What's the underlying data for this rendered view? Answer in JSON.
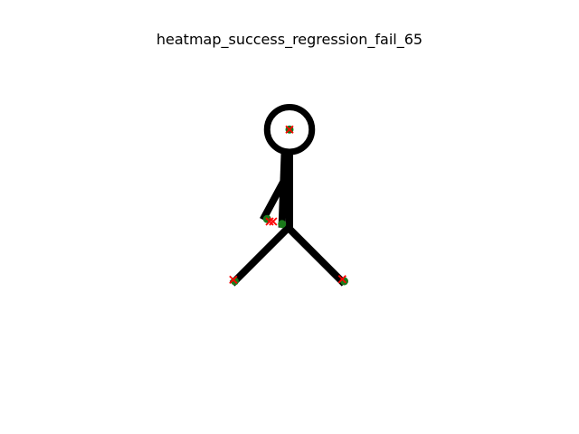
{
  "chart_data": {
    "type": "scatter",
    "title": "heatmap_success_regression_fail_65",
    "xlabel": "",
    "ylabel": "",
    "grid": false,
    "axes_visible": false,
    "image": {
      "type": "stick-figure",
      "color": "#000000",
      "size": [
        64,
        64
      ],
      "head": {
        "x": 32,
        "y": 15.5,
        "r": 4.5
      },
      "segments": [
        {
          "name": "neck-spine",
          "from": [
            32,
            20.5
          ],
          "to": [
            32,
            35
          ]
        },
        {
          "name": "torso-back",
          "from": [
            31,
            20.5
          ],
          "to": [
            30.5,
            34.5
          ]
        },
        {
          "name": "upper-arm",
          "from": [
            30.5,
            26.5
          ],
          "to": [
            27,
            33
          ]
        },
        {
          "name": "left-leg",
          "from": [
            31.5,
            35.5
          ],
          "to": [
            21,
            46
          ]
        },
        {
          "name": "right-leg",
          "from": [
            32,
            35.5
          ],
          "to": [
            42.5,
            46
          ]
        }
      ]
    },
    "series": [
      {
        "name": "",
        "marker": "circle",
        "color": "#1a7a1a",
        "points": [
          {
            "x": 32,
            "y": 15.5
          },
          {
            "x": 27.5,
            "y": 33.5
          },
          {
            "x": 30.5,
            "y": 34.5
          },
          {
            "x": 21,
            "y": 46
          },
          {
            "x": 43,
            "y": 46
          }
        ]
      },
      {
        "name": "",
        "marker": "x",
        "color": "#ff0000",
        "points": [
          {
            "x": 32,
            "y": 15.5
          },
          {
            "x": 28,
            "y": 34
          },
          {
            "x": 28.7,
            "y": 34
          },
          {
            "x": 20.7,
            "y": 45.7
          },
          {
            "x": 42.6,
            "y": 45.6
          }
        ]
      }
    ]
  }
}
